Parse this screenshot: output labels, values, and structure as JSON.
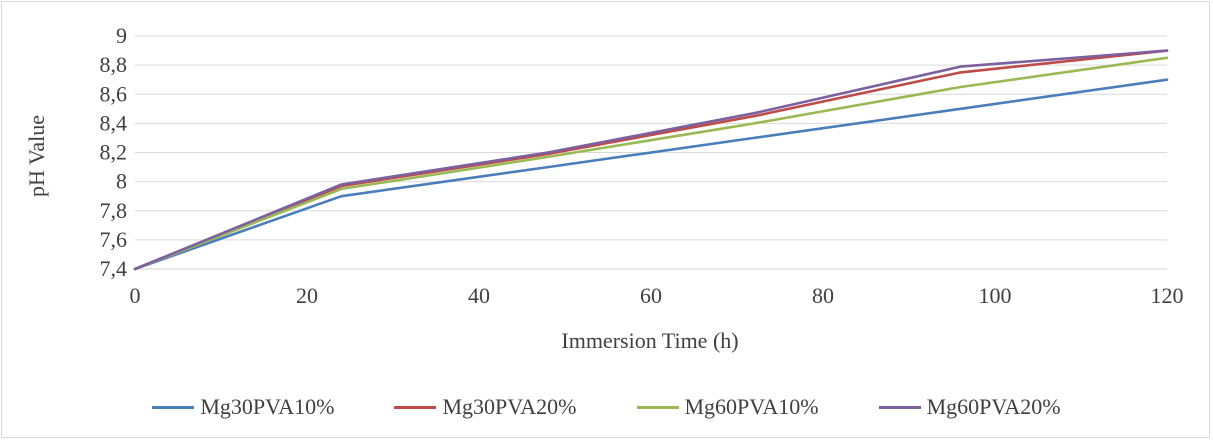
{
  "chart_data": {
    "type": "line",
    "title": "",
    "xlabel": "Immersion Time (h)",
    "ylabel": "pH Value",
    "xlim": [
      0,
      120
    ],
    "ylim": [
      7.4,
      9
    ],
    "xticks": [
      0,
      20,
      40,
      60,
      80,
      100,
      120
    ],
    "xtick_labels": [
      "0",
      "20",
      "40",
      "60",
      "80",
      "100",
      "120"
    ],
    "yticks": [
      7.4,
      7.6,
      7.8,
      8.0,
      8.2,
      8.4,
      8.6,
      8.8,
      9.0
    ],
    "ytick_labels": [
      "7,4",
      "7,6",
      "7,8",
      "8",
      "8,2",
      "8,4",
      "8,6",
      "8,8",
      "9"
    ],
    "grid": "horizontal",
    "legend_position": "bottom",
    "x": [
      0,
      24,
      48,
      72,
      96,
      120
    ],
    "series": [
      {
        "name": "Mg30PVA10%",
        "color": "#4a7ebb",
        "values": [
          7.4,
          7.9,
          8.1,
          8.3,
          8.5,
          8.7
        ]
      },
      {
        "name": "Mg30PVA20%",
        "color": "#be4b48",
        "values": [
          7.4,
          7.97,
          8.19,
          8.45,
          8.75,
          8.9
        ]
      },
      {
        "name": "Mg60PVA10%",
        "color": "#98b954",
        "values": [
          7.4,
          7.95,
          8.17,
          8.4,
          8.65,
          8.85
        ]
      },
      {
        "name": "Mg60PVA20%",
        "color": "#7d60a0",
        "values": [
          7.4,
          7.98,
          8.2,
          8.47,
          8.79,
          8.9
        ]
      }
    ]
  }
}
